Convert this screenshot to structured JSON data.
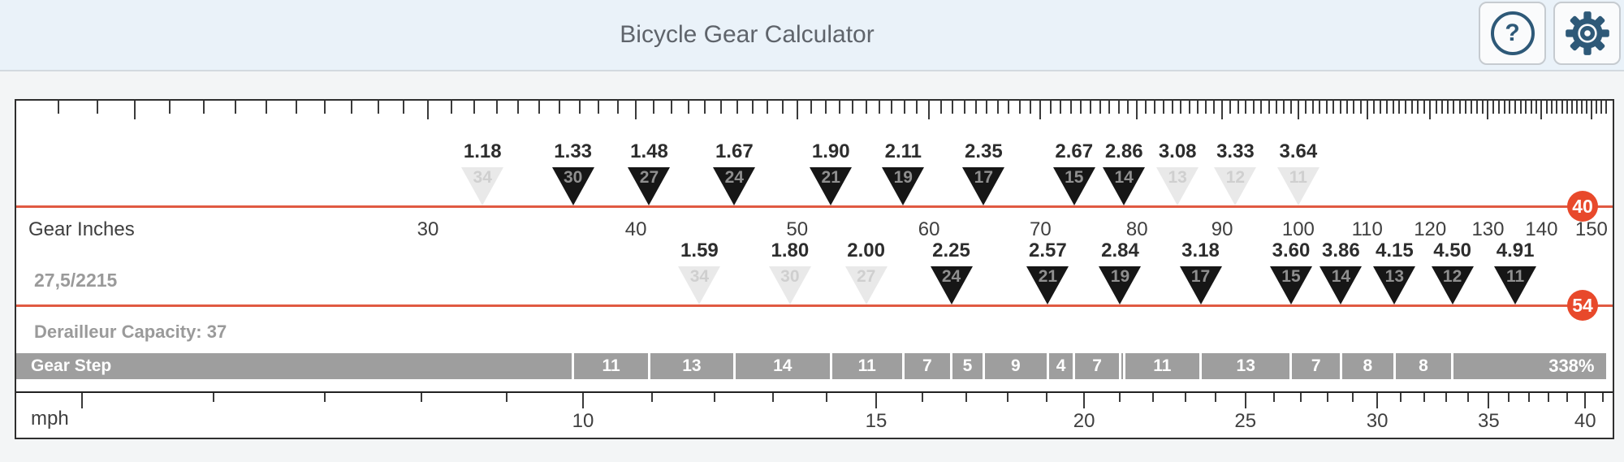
{
  "header": {
    "title": "Bicycle Gear Calculator",
    "help_glyph": "?"
  },
  "colors": {
    "header_bg": "#eaf2f9",
    "icon_blue": "#2e5978",
    "red_line": "#e05a42",
    "badge_bg": "#e8492b",
    "gear_step_bar": "#9e9e9e",
    "faded_marker": "#e9e9e9",
    "marker_black": "#161616"
  },
  "chart_data": {
    "type": "custom-gear-chart",
    "title": "Bicycle Gear Calculator",
    "wheel_label": "27,5/2215",
    "wheel_diameter_in": 27.5,
    "derailleur_capacity_label": "Derailleur Capacity: 37",
    "x_axis_top": {
      "label": "Gear Inches",
      "scale": "log",
      "tick_min": 18,
      "tick_max": 153,
      "labeled_ticks": [
        30,
        40,
        50,
        60,
        70,
        80,
        90,
        100,
        110,
        120,
        130,
        140,
        150
      ]
    },
    "x_axis_bottom": {
      "label": "mph",
      "scale": "log",
      "tick_min": 5,
      "tick_max": 41,
      "labeled_ticks": [
        10,
        15,
        20,
        25,
        30,
        35,
        40
      ]
    },
    "rows": [
      {
        "chainring": 40,
        "badge": "40",
        "markers": [
          {
            "cog": 34,
            "ratio": "1.18",
            "faded": true
          },
          {
            "cog": 30,
            "ratio": "1.33",
            "faded": false
          },
          {
            "cog": 27,
            "ratio": "1.48",
            "faded": false
          },
          {
            "cog": 24,
            "ratio": "1.67",
            "faded": false
          },
          {
            "cog": 21,
            "ratio": "1.90",
            "faded": false
          },
          {
            "cog": 19,
            "ratio": "2.11",
            "faded": false
          },
          {
            "cog": 17,
            "ratio": "2.35",
            "faded": false
          },
          {
            "cog": 15,
            "ratio": "2.67",
            "faded": false
          },
          {
            "cog": 14,
            "ratio": "2.86",
            "faded": false
          },
          {
            "cog": 13,
            "ratio": "3.08",
            "faded": true
          },
          {
            "cog": 12,
            "ratio": "3.33",
            "faded": true
          },
          {
            "cog": 11,
            "ratio": "3.64",
            "faded": true
          }
        ]
      },
      {
        "chainring": 54,
        "badge": "54",
        "markers": [
          {
            "cog": 34,
            "ratio": "1.59",
            "faded": true
          },
          {
            "cog": 30,
            "ratio": "1.80",
            "faded": true
          },
          {
            "cog": 27,
            "ratio": "2.00",
            "faded": true
          },
          {
            "cog": 24,
            "ratio": "2.25",
            "faded": false
          },
          {
            "cog": 21,
            "ratio": "2.57",
            "faded": false
          },
          {
            "cog": 19,
            "ratio": "2.84",
            "faded": false
          },
          {
            "cog": 17,
            "ratio": "3.18",
            "faded": false
          },
          {
            "cog": 15,
            "ratio": "3.60",
            "faded": false
          },
          {
            "cog": 14,
            "ratio": "3.86",
            "faded": false
          },
          {
            "cog": 13,
            "ratio": "4.15",
            "faded": false
          },
          {
            "cog": 12,
            "ratio": "4.50",
            "faded": false
          },
          {
            "cog": 11,
            "ratio": "4.91",
            "faded": false
          }
        ]
      }
    ],
    "gear_step": {
      "title": "Gear Step",
      "boundary_ratios": [
        1.3333,
        1.4815,
        1.6667,
        1.9048,
        2.1053,
        2.25,
        2.3529,
        2.5714,
        2.6667,
        2.8421,
        2.8571,
        3.1765,
        3.6,
        3.8571,
        4.1538,
        4.5
      ],
      "labels": [
        "11",
        "13",
        "14",
        "11",
        "7",
        "5",
        "9",
        "4",
        "7",
        "",
        "11",
        "13",
        "7",
        "8",
        "8"
      ],
      "total_label": "338%"
    }
  }
}
